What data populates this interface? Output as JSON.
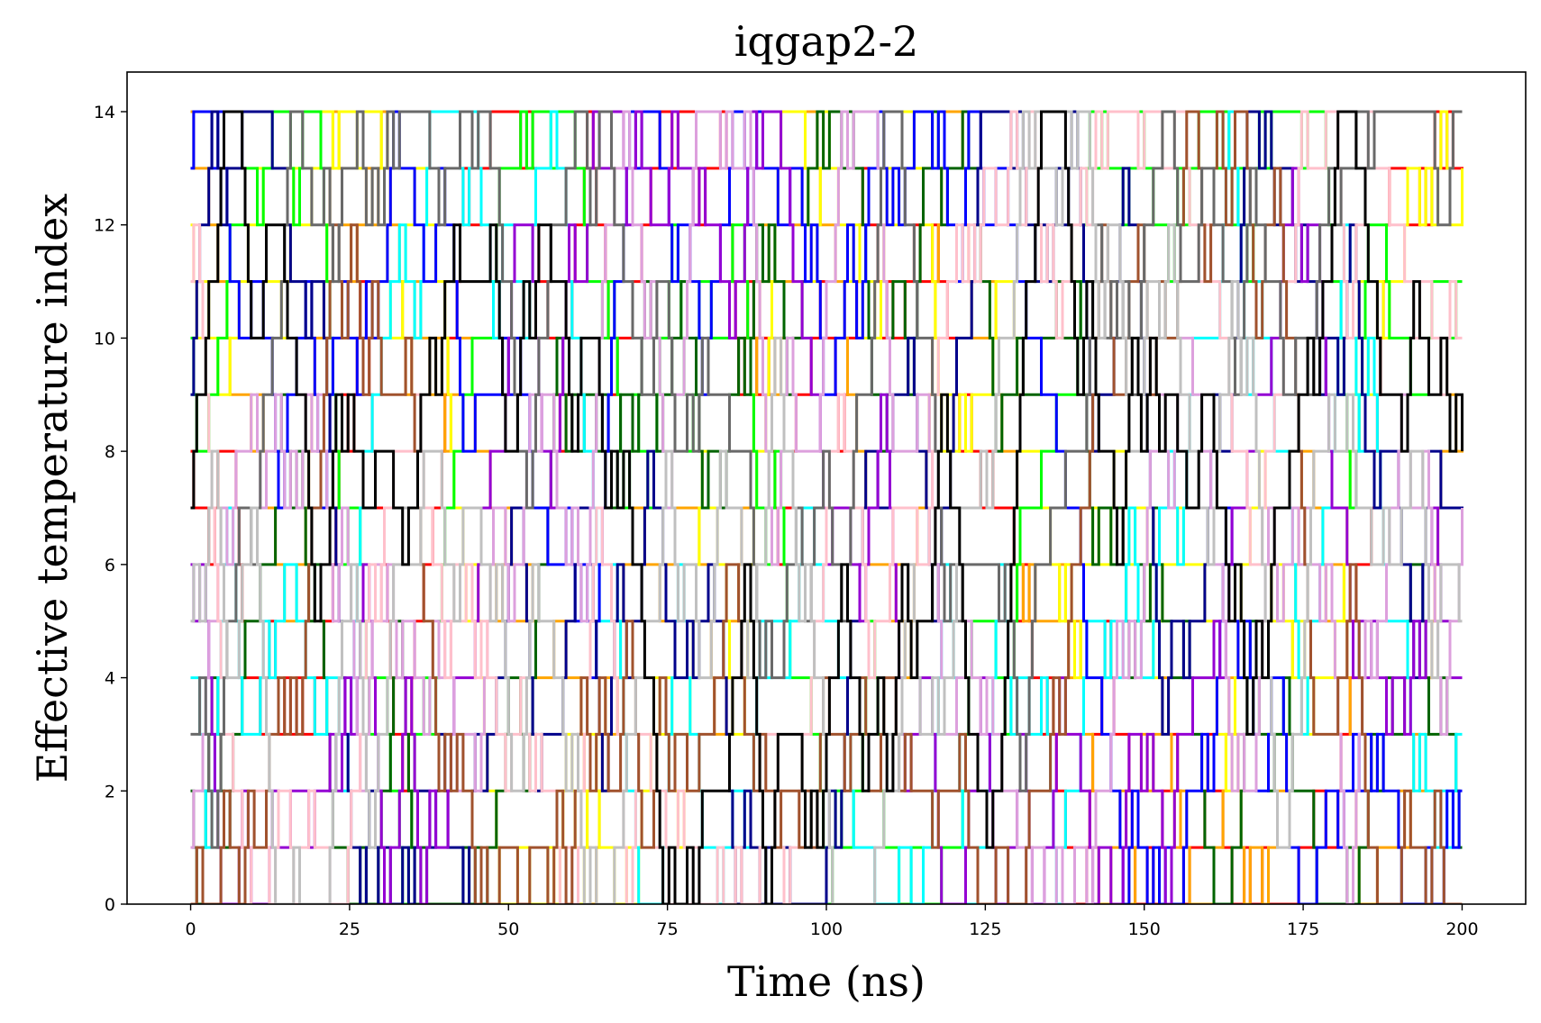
{
  "chart_data": {
    "type": "line",
    "title": "iqgap2-2",
    "xlabel": "Time (ns)",
    "ylabel": "Effective temperature index",
    "xlim": [
      -10,
      210
    ],
    "ylim": [
      0,
      14.7
    ],
    "x_ticks": [
      "0",
      "25",
      "50",
      "75",
      "100",
      "125",
      "150",
      "175",
      "200"
    ],
    "y_ticks": [
      "0",
      "2",
      "4",
      "6",
      "8",
      "10",
      "12",
      "14"
    ],
    "x_tick_values": [
      0,
      25,
      50,
      75,
      100,
      125,
      150,
      175,
      200
    ],
    "y_tick_values": [
      0,
      2,
      4,
      6,
      8,
      10,
      12,
      14
    ],
    "grid": false,
    "legend": "none",
    "num_series": 15,
    "time_range": [
      0,
      200
    ],
    "index_levels": [
      0,
      1,
      2,
      3,
      4,
      5,
      6,
      7,
      8,
      9,
      10,
      11,
      12,
      13,
      14
    ],
    "series_colors": [
      "#ff0000",
      "#ffa500",
      "#ffff00",
      "#00ff00",
      "#006400",
      "#00ffff",
      "#0000ff",
      "#00008b",
      "#9400d3",
      "#dda0dd",
      "#ffc0cb",
      "#a0522d",
      "#696969",
      "#c0c0c0",
      "#000000"
    ],
    "note_on_series": "Each of 15 replicas hops between integer temperature indices 0–14 over 0–200 ns; traces are step lines densely overlapping."
  }
}
